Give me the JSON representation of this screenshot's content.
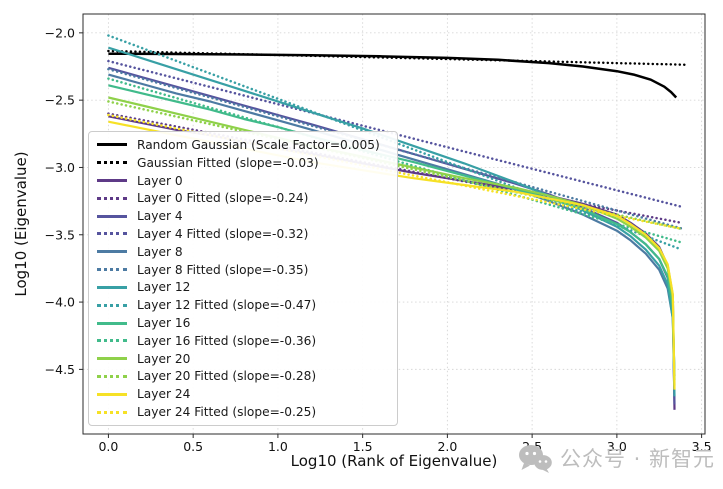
{
  "watermark": {
    "icon": "wechat-icon",
    "text": "公众号 · 新智元"
  },
  "chart_data": {
    "type": "line",
    "title": "",
    "xlabel": "Log10 (Rank of Eigenvalue)",
    "ylabel": "Log10 (Eigenvalue)",
    "xlim": [
      -0.15,
      3.52
    ],
    "ylim": [
      -4.98,
      -1.86
    ],
    "xticks": [
      0.0,
      0.5,
      1.0,
      1.5,
      2.0,
      2.5,
      3.0,
      3.5
    ],
    "yticks": [
      -2.0,
      -2.5,
      -3.0,
      -3.5,
      -4.0,
      -4.5
    ],
    "grid": true,
    "legend_position": "center left",
    "series": [
      {
        "id": "random-gaussian",
        "label": "Random Gaussian (Scale Factor=0.005)",
        "color": "#000000",
        "style": "solid",
        "width": 2.5,
        "points": [
          [
            0,
            -2.155
          ],
          [
            0.4,
            -2.157
          ],
          [
            0.8,
            -2.161
          ],
          [
            1.2,
            -2.166
          ],
          [
            1.6,
            -2.174
          ],
          [
            2.0,
            -2.186
          ],
          [
            2.3,
            -2.2
          ],
          [
            2.6,
            -2.225
          ],
          [
            2.8,
            -2.25
          ],
          [
            3.0,
            -2.285
          ],
          [
            3.1,
            -2.31
          ],
          [
            3.2,
            -2.348
          ],
          [
            3.28,
            -2.4
          ],
          [
            3.32,
            -2.44
          ],
          [
            3.35,
            -2.48
          ]
        ]
      },
      {
        "id": "gaussian-fitted",
        "label": "Gaussian Fitted (slope=-0.03)",
        "color": "#000000",
        "style": "dotted",
        "fit": {
          "slope": -0.03,
          "intercept": -2.135,
          "x0": 0,
          "x1": 3.42
        }
      },
      {
        "id": "layer-0",
        "label": "Layer 0",
        "color": "#5e3a87",
        "style": "solid",
        "width": 2.2,
        "points": [
          [
            0,
            -2.62
          ],
          [
            0.2,
            -2.67
          ],
          [
            0.4,
            -2.72
          ],
          [
            0.6,
            -2.76
          ],
          [
            0.8,
            -2.81
          ],
          [
            1.0,
            -2.86
          ],
          [
            1.2,
            -2.9
          ],
          [
            1.5,
            -2.97
          ],
          [
            1.8,
            -3.04
          ],
          [
            2.1,
            -3.1
          ],
          [
            2.4,
            -3.16
          ],
          [
            2.6,
            -3.21
          ],
          [
            2.8,
            -3.27
          ],
          [
            3.0,
            -3.35
          ],
          [
            3.08,
            -3.41
          ],
          [
            3.17,
            -3.49
          ],
          [
            3.25,
            -3.59
          ],
          [
            3.3,
            -3.73
          ],
          [
            3.33,
            -3.95
          ],
          [
            3.34,
            -4.8
          ]
        ]
      },
      {
        "id": "layer-0-fitted",
        "label": "Layer 0 Fitted (slope=-0.24)",
        "color": "#5e3a87",
        "style": "dotted",
        "fit": {
          "slope": -0.24,
          "intercept": -2.6,
          "x0": 0,
          "x1": 3.38
        }
      },
      {
        "id": "layer-4",
        "label": "Layer 4",
        "color": "#56549e",
        "style": "solid",
        "width": 2.2,
        "points": [
          [
            0,
            -2.26
          ],
          [
            0.2,
            -2.33
          ],
          [
            0.4,
            -2.4
          ],
          [
            0.6,
            -2.47
          ],
          [
            0.8,
            -2.54
          ],
          [
            1.0,
            -2.61
          ],
          [
            1.2,
            -2.68
          ],
          [
            1.5,
            -2.79
          ],
          [
            1.8,
            -2.9
          ],
          [
            2.1,
            -3.01
          ],
          [
            2.4,
            -3.12
          ],
          [
            2.6,
            -3.2
          ],
          [
            2.8,
            -3.3
          ],
          [
            3.0,
            -3.41
          ],
          [
            3.08,
            -3.48
          ],
          [
            3.17,
            -3.57
          ],
          [
            3.25,
            -3.68
          ],
          [
            3.3,
            -3.82
          ],
          [
            3.33,
            -4.05
          ],
          [
            3.34,
            -4.76
          ]
        ]
      },
      {
        "id": "layer-4-fitted",
        "label": "Layer 4 Fitted (slope=-0.32)",
        "color": "#56549e",
        "style": "dotted",
        "fit": {
          "slope": -0.32,
          "intercept": -2.21,
          "x0": 0,
          "x1": 3.38
        }
      },
      {
        "id": "layer-8",
        "label": "Layer 8",
        "color": "#4d7ba3",
        "style": "solid",
        "width": 2.2,
        "points": [
          [
            0,
            -2.31
          ],
          [
            0.2,
            -2.38
          ],
          [
            0.4,
            -2.45
          ],
          [
            0.6,
            -2.51
          ],
          [
            0.8,
            -2.58
          ],
          [
            1.0,
            -2.65
          ],
          [
            1.2,
            -2.72
          ],
          [
            1.5,
            -2.83
          ],
          [
            1.8,
            -2.94
          ],
          [
            2.1,
            -3.05
          ],
          [
            2.4,
            -3.16
          ],
          [
            2.6,
            -3.25
          ],
          [
            2.8,
            -3.35
          ],
          [
            3.0,
            -3.47
          ],
          [
            3.08,
            -3.54
          ],
          [
            3.17,
            -3.64
          ],
          [
            3.25,
            -3.76
          ],
          [
            3.3,
            -3.9
          ],
          [
            3.33,
            -4.12
          ],
          [
            3.34,
            -4.55
          ]
        ]
      },
      {
        "id": "layer-8-fitted",
        "label": "Layer 8 Fitted (slope=-0.35)",
        "color": "#4d7ba3",
        "style": "dotted",
        "fit": {
          "slope": -0.35,
          "intercept": -2.27,
          "x0": 0,
          "x1": 3.38
        }
      },
      {
        "id": "layer-12",
        "label": "Layer 12",
        "color": "#38a0a5",
        "style": "solid",
        "width": 2.2,
        "points": [
          [
            0,
            -2.11
          ],
          [
            0.1,
            -2.15
          ],
          [
            0.3,
            -2.23
          ],
          [
            0.5,
            -2.31
          ],
          [
            0.7,
            -2.39
          ],
          [
            0.9,
            -2.47
          ],
          [
            1.1,
            -2.55
          ],
          [
            1.3,
            -2.63
          ],
          [
            1.5,
            -2.71
          ],
          [
            1.8,
            -2.84
          ],
          [
            2.1,
            -2.97
          ],
          [
            2.4,
            -3.11
          ],
          [
            2.6,
            -3.21
          ],
          [
            2.8,
            -3.32
          ],
          [
            3.0,
            -3.44
          ],
          [
            3.08,
            -3.51
          ],
          [
            3.17,
            -3.61
          ],
          [
            3.25,
            -3.73
          ],
          [
            3.3,
            -3.87
          ],
          [
            3.33,
            -4.12
          ],
          [
            3.34,
            -4.7
          ]
        ]
      },
      {
        "id": "layer-12-fitted",
        "label": "Layer 12 Fitted (slope=-0.47)",
        "color": "#38a0a5",
        "style": "dotted",
        "fit": {
          "slope": -0.47,
          "intercept": -2.02,
          "x0": 0,
          "x1": 3.38
        }
      },
      {
        "id": "layer-16",
        "label": "Layer 16",
        "color": "#41bb8b",
        "style": "solid",
        "width": 2.2,
        "points": [
          [
            0,
            -2.39
          ],
          [
            0.2,
            -2.45
          ],
          [
            0.4,
            -2.51
          ],
          [
            0.6,
            -2.57
          ],
          [
            0.8,
            -2.64
          ],
          [
            1.0,
            -2.7
          ],
          [
            1.2,
            -2.77
          ],
          [
            1.5,
            -2.87
          ],
          [
            1.8,
            -2.96
          ],
          [
            2.1,
            -3.06
          ],
          [
            2.4,
            -3.16
          ],
          [
            2.6,
            -3.23
          ],
          [
            2.8,
            -3.31
          ],
          [
            3.0,
            -3.42
          ],
          [
            3.08,
            -3.48
          ],
          [
            3.17,
            -3.57
          ],
          [
            3.25,
            -3.68
          ],
          [
            3.3,
            -3.81
          ],
          [
            3.33,
            -4.03
          ],
          [
            3.34,
            -4.58
          ]
        ]
      },
      {
        "id": "layer-16-fitted",
        "label": "Layer 16 Fitted (slope=-0.36)",
        "color": "#41bb8b",
        "style": "dotted",
        "fit": {
          "slope": -0.36,
          "intercept": -2.34,
          "x0": 0,
          "x1": 3.38
        }
      },
      {
        "id": "layer-20",
        "label": "Layer 20",
        "color": "#8fd14a",
        "style": "solid",
        "width": 2.2,
        "points": [
          [
            0,
            -2.48
          ],
          [
            0.2,
            -2.54
          ],
          [
            0.4,
            -2.6
          ],
          [
            0.6,
            -2.66
          ],
          [
            0.8,
            -2.72
          ],
          [
            1.0,
            -2.78
          ],
          [
            1.2,
            -2.84
          ],
          [
            1.5,
            -2.92
          ],
          [
            1.8,
            -3.0
          ],
          [
            2.1,
            -3.08
          ],
          [
            2.4,
            -3.15
          ],
          [
            2.6,
            -3.21
          ],
          [
            2.8,
            -3.28
          ],
          [
            3.0,
            -3.38
          ],
          [
            3.08,
            -3.44
          ],
          [
            3.17,
            -3.52
          ],
          [
            3.25,
            -3.62
          ],
          [
            3.3,
            -3.75
          ],
          [
            3.33,
            -3.97
          ],
          [
            3.34,
            -4.62
          ]
        ]
      },
      {
        "id": "layer-20-fitted",
        "label": "Layer 20 Fitted (slope=-0.28)",
        "color": "#8fd14a",
        "style": "dotted",
        "fit": {
          "slope": -0.28,
          "intercept": -2.51,
          "x0": 0,
          "x1": 3.38
        }
      },
      {
        "id": "layer-24",
        "label": "Layer 24",
        "color": "#f6e126",
        "style": "solid",
        "width": 2.2,
        "points": [
          [
            0,
            -2.66
          ],
          [
            0.2,
            -2.71
          ],
          [
            0.4,
            -2.76
          ],
          [
            0.6,
            -2.81
          ],
          [
            0.8,
            -2.86
          ],
          [
            1.0,
            -2.91
          ],
          [
            1.2,
            -2.96
          ],
          [
            1.5,
            -3.02
          ],
          [
            1.8,
            -3.08
          ],
          [
            2.1,
            -3.13
          ],
          [
            2.4,
            -3.18
          ],
          [
            2.6,
            -3.23
          ],
          [
            2.8,
            -3.28
          ],
          [
            3.0,
            -3.36
          ],
          [
            3.08,
            -3.42
          ],
          [
            3.17,
            -3.5
          ],
          [
            3.25,
            -3.6
          ],
          [
            3.3,
            -3.72
          ],
          [
            3.33,
            -3.94
          ],
          [
            3.34,
            -4.65
          ]
        ]
      },
      {
        "id": "layer-24-fitted",
        "label": "Layer 24 Fitted (slope=-0.25)",
        "color": "#f6e126",
        "style": "dotted",
        "fit": {
          "slope": -0.25,
          "intercept": -2.61,
          "x0": 0,
          "x1": 3.38
        }
      }
    ]
  }
}
